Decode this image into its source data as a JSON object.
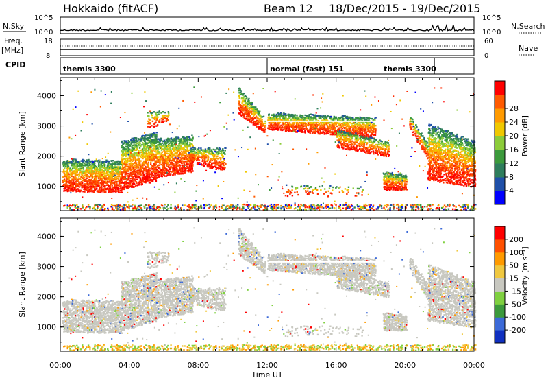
{
  "header": {
    "station": "Hokkaido (fitACF)",
    "beam": "Beam 12",
    "dates": "18/Dec/2015 - 19/Dec/2015"
  },
  "top_panels": {
    "nsky_label": "N.Sky",
    "nsearch_label": "N.Search",
    "noise_ticks": [
      "10^5",
      "10^0"
    ],
    "freq_label": "Freq.",
    "freq_unit": "[MHz]",
    "freq_ticks": [
      "18",
      "8"
    ],
    "nave_label": "Nave",
    "nave_ticks": [
      "60",
      "0"
    ],
    "cpid_label": "CPID",
    "cpid_segments": [
      {
        "name": "themis 3300",
        "start": 0,
        "end": 12
      },
      {
        "name": "normal (fast) 151",
        "start": 12,
        "end": 21.7
      },
      {
        "name": "themis 3300",
        "start": 21.7,
        "end": 24
      }
    ],
    "cpid_text": [
      "themis 3300",
      "normal (fast) 151",
      "themis 3300"
    ]
  },
  "chart_data": [
    {
      "type": "heatmap",
      "name": "power",
      "ylabel": "Slant Range [km]",
      "xlabel": "Time UT",
      "xlim": [
        0,
        24
      ],
      "ylim": [
        200,
        4600
      ],
      "yticks": [
        "1000",
        "2000",
        "3000",
        "4000"
      ],
      "xticks": [
        "00:00",
        "04:00",
        "08:00",
        "12:00",
        "16:00",
        "20:00",
        "00:00"
      ],
      "colorbar": {
        "label": "Power [dB]",
        "ticks": [
          "4",
          "8",
          "12",
          "16",
          "20",
          "24",
          "28"
        ],
        "colors": [
          "#0000ff",
          "#1f4fa8",
          "#2e7d5c",
          "#3c9a3c",
          "#8ccc3a",
          "#f0c800",
          "#ff9a00",
          "#ff5a00",
          "#ff0000"
        ]
      }
    },
    {
      "type": "heatmap",
      "name": "velocity",
      "ylabel": "Slant Range [km]",
      "xlabel": "Time UT",
      "xlim": [
        0,
        24
      ],
      "ylim": [
        200,
        4600
      ],
      "yticks": [
        "1000",
        "2000",
        "3000",
        "4000"
      ],
      "xticks": [
        "00:00",
        "04:00",
        "08:00",
        "12:00",
        "16:00",
        "20:00",
        "00:00"
      ],
      "colorbar": {
        "label": "Velocity [m s⁻¹]",
        "ticks": [
          "200",
          "100",
          "50",
          "15",
          "-15",
          "-50",
          "-100",
          "-200"
        ],
        "colors": [
          "#1030c0",
          "#3c6ad8",
          "#3c9a3c",
          "#7fd040",
          "#c8c8c0",
          "#f0c840",
          "#ff9a00",
          "#ff5000",
          "#ff0000"
        ]
      }
    }
  ]
}
